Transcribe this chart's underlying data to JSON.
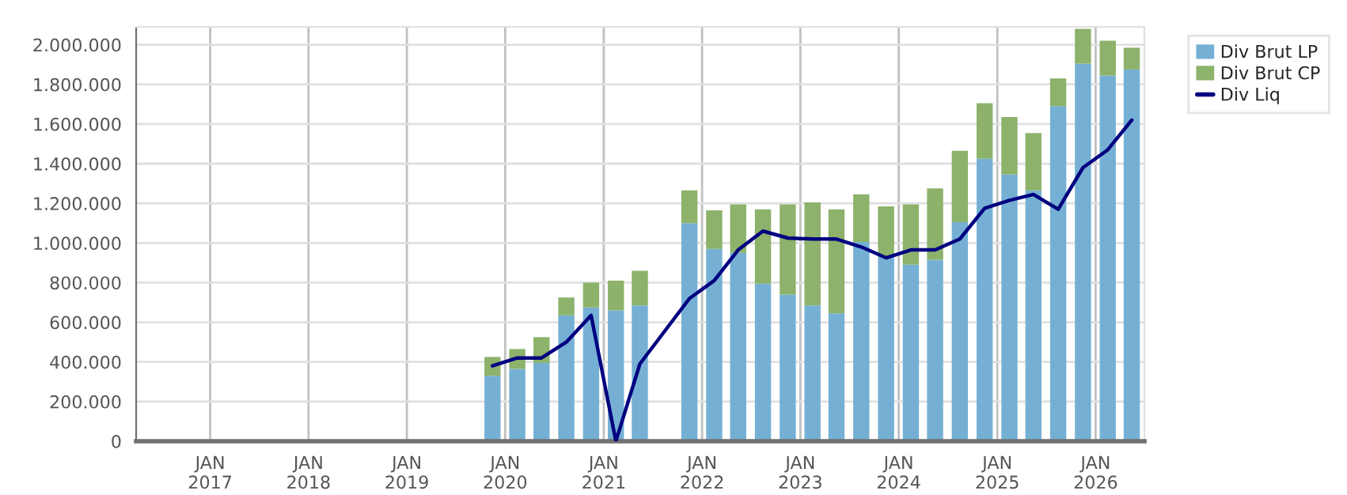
{
  "chart_data": {
    "type": "bar",
    "stacked": true,
    "x": [
      "2019-11-15",
      "2020-02-15",
      "2020-05-15",
      "2020-08-15",
      "2020-11-15",
      "2021-02-15",
      "2021-05-15",
      "2021-08-15",
      "2021-11-15",
      "2022-02-15",
      "2022-05-15",
      "2022-08-15",
      "2022-11-15",
      "2023-02-15",
      "2023-05-15",
      "2023-08-15",
      "2023-11-15",
      "2024-02-15",
      "2024-05-15",
      "2024-08-15",
      "2024-11-15",
      "2025-02-15",
      "2025-05-15",
      "2025-08-15",
      "2025-11-15",
      "2026-02-15",
      "2026-05-15"
    ],
    "series": [
      {
        "name": "Div Brut LP",
        "color": "#75b0d4",
        "values": [
          330000,
          365000,
          395000,
          635000,
          675000,
          660000,
          685000,
          null,
          1100000,
          970000,
          950000,
          795000,
          740000,
          685000,
          645000,
          1005000,
          930000,
          890000,
          915000,
          1105000,
          1425000,
          1345000,
          1265000,
          1690000,
          1905000,
          1845000,
          1875000
        ]
      },
      {
        "name": "Div Brut CP",
        "color": "#8cb26b",
        "values": [
          95000,
          100000,
          130000,
          90000,
          125000,
          150000,
          175000,
          null,
          165000,
          195000,
          245000,
          375000,
          455000,
          520000,
          525000,
          240000,
          255000,
          305000,
          360000,
          360000,
          280000,
          290000,
          290000,
          140000,
          175000,
          175000,
          110000
        ]
      },
      {
        "name": "Div Liq",
        "type": "line",
        "color": "#000080",
        "values": [
          380000,
          420000,
          420000,
          500000,
          635000,
          0,
          390000,
          null,
          720000,
          810000,
          965000,
          1060000,
          1025000,
          1020000,
          1020000,
          980000,
          925000,
          965000,
          965000,
          1020000,
          1175000,
          1215000,
          1245000,
          1170000,
          1380000,
          1470000,
          1620000
        ]
      }
    ],
    "xlim": [
      "2016-04-01",
      "2026-07-01"
    ],
    "xticks": [
      {
        "value": "2017-01-01",
        "label": "JAN\n2017"
      },
      {
        "value": "2018-01-01",
        "label": "JAN\n2018"
      },
      {
        "value": "2019-01-01",
        "label": "JAN\n2019"
      },
      {
        "value": "2020-01-01",
        "label": "JAN\n2020"
      },
      {
        "value": "2021-01-01",
        "label": "JAN\n2021"
      },
      {
        "value": "2022-01-01",
        "label": "JAN\n2022"
      },
      {
        "value": "2023-01-01",
        "label": "JAN\n2023"
      },
      {
        "value": "2024-01-01",
        "label": "JAN\n2024"
      },
      {
        "value": "2025-01-01",
        "label": "JAN\n2025"
      },
      {
        "value": "2026-01-01",
        "label": "JAN\n2026"
      }
    ],
    "ylim": [
      0,
      2090000
    ],
    "yticks": [
      {
        "value": 0,
        "label": "0"
      },
      {
        "value": 200000,
        "label": "200.000"
      },
      {
        "value": 400000,
        "label": "400.000"
      },
      {
        "value": 600000,
        "label": "600.000"
      },
      {
        "value": 800000,
        "label": "800.000"
      },
      {
        "value": 1000000,
        "label": "1.000.000"
      },
      {
        "value": 1200000,
        "label": "1.200.000"
      },
      {
        "value": 1400000,
        "label": "1.400.000"
      },
      {
        "value": 1600000,
        "label": "1.600.000"
      },
      {
        "value": 1800000,
        "label": "1.800.000"
      },
      {
        "value": 2000000,
        "label": "2.000.000"
      }
    ],
    "grid": true,
    "legend": "top right",
    "marker": "none",
    "line_style": "solid"
  }
}
